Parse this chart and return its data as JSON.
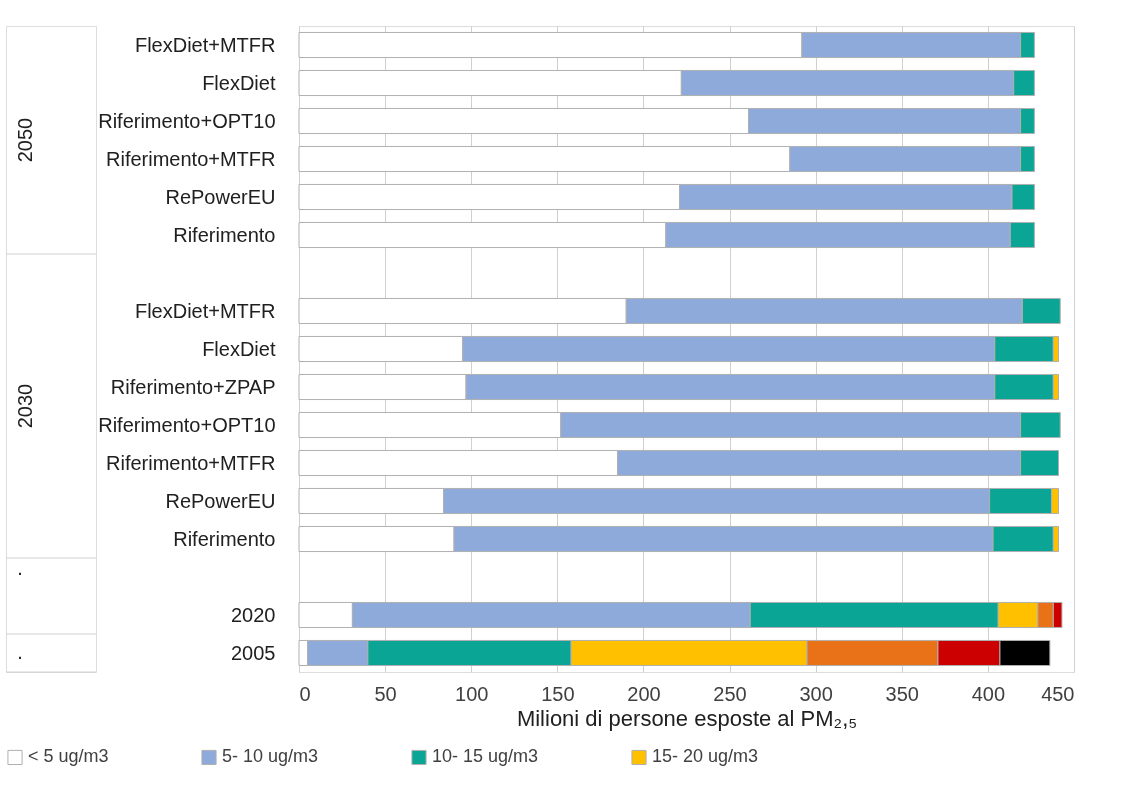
{
  "chart_data": {
    "type": "bar",
    "orientation": "horizontal",
    "stacked": true,
    "categories": [
      "FlexDiet+MTFR",
      "FlexDiet",
      "Riferimento+OPT10",
      "Riferimento+MTFR",
      "RePowerEU",
      "Riferimento",
      null,
      "FlexDiet+MTFR",
      "FlexDiet",
      "Riferimento+ZPAP",
      "Riferimento+OPT10",
      "Riferimento+MTFR",
      "RePowerEU",
      "Riferimento",
      null,
      "2020",
      "2005"
    ],
    "xlabel": "Milioni di persone esposte al PM₂,₅",
    "annotations": [
      "2050",
      "2030",
      ".",
      "."
    ],
    "xlim": [
      0,
      450
    ],
    "xticks": [
      0,
      50,
      100,
      150,
      200,
      250,
      300,
      350,
      400,
      450
    ],
    "grid": "x",
    "legend": "bottom",
    "series": [
      {
        "name": "< 5 ug/m3",
        "color": "#ffffff",
        "values": [
          292,
          222,
          261,
          285,
          221,
          213,
          null,
          190,
          95,
          97,
          152,
          185,
          84,
          90,
          null,
          31,
          5
        ]
      },
      {
        "name": "5- 10 ug/m3",
        "color": "#8eaadb",
        "values": [
          127,
          193,
          158,
          134,
          193,
          200,
          null,
          230,
          309,
          307,
          267,
          234,
          317,
          313,
          null,
          231,
          35
        ]
      },
      {
        "name": "10- 15 ug/m3",
        "color": "#0aa595",
        "values": [
          8,
          12,
          8,
          8,
          13,
          14,
          null,
          22,
          34,
          34,
          23,
          22,
          36,
          35,
          null,
          144,
          118
        ]
      },
      {
        "name": "15- 20 ug/m3",
        "color": "#ffc000",
        "values": [
          null,
          null,
          null,
          null,
          null,
          null,
          null,
          null,
          3,
          3,
          null,
          null,
          4,
          3,
          null,
          23,
          137
        ]
      },
      {
        "color": "#e97117",
        "values": [
          null,
          null,
          null,
          null,
          null,
          null,
          null,
          null,
          null,
          null,
          null,
          null,
          null,
          null,
          null,
          9,
          76
        ]
      },
      {
        "color": "#cc0000",
        "values": [
          null,
          null,
          null,
          null,
          null,
          null,
          null,
          null,
          null,
          null,
          null,
          null,
          null,
          null,
          null,
          5,
          36
        ]
      },
      {
        "color": "#000000",
        "values": [
          null,
          null,
          null,
          null,
          null,
          null,
          null,
          null,
          null,
          null,
          null,
          null,
          null,
          null,
          null,
          null,
          29
        ]
      }
    ]
  }
}
